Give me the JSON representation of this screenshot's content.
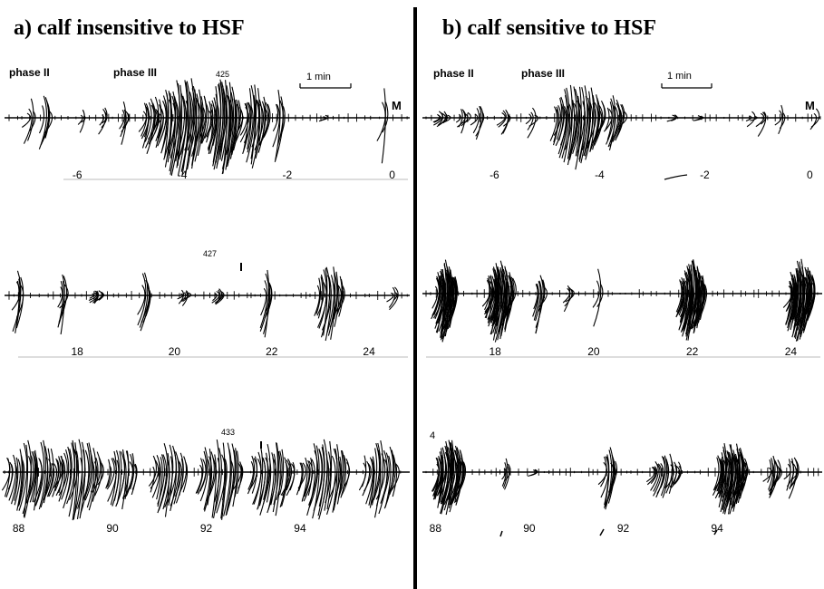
{
  "panels": [
    {
      "id": "a",
      "title": "a) calf insensitive to HSF",
      "rows": [
        {
          "phase_labels": [
            "phase II",
            "phase III"
          ],
          "record_number": "425",
          "scale_label": "1 min",
          "end_marker": "M",
          "tick_labels": [
            "-6",
            "-4",
            "-2",
            "0"
          ],
          "tick_values": [
            -6,
            -4,
            -2,
            0
          ],
          "x_range": [
            -7.3,
            0.3
          ],
          "bursts": [
            {
              "t": -6.9,
              "w": 0.05,
              "amp": 0.55,
              "dens": 4
            },
            {
              "t": -6.6,
              "w": 0.06,
              "amp": 0.7,
              "dens": 6
            },
            {
              "t": -5.9,
              "w": 0.03,
              "amp": 0.25,
              "dens": 3
            },
            {
              "t": -5.5,
              "w": 0.04,
              "amp": 0.3,
              "dens": 4
            },
            {
              "t": -5.1,
              "w": 0.05,
              "amp": 0.45,
              "dens": 5
            },
            {
              "t": -4.6,
              "w": 0.14,
              "amp": 0.6,
              "dens": 14
            },
            {
              "t": -4.0,
              "w": 0.45,
              "amp": 1.0,
              "dens": 45
            },
            {
              "t": -3.2,
              "w": 0.3,
              "amp": 0.95,
              "dens": 34
            },
            {
              "t": -2.6,
              "w": 0.22,
              "amp": 0.85,
              "dens": 22
            },
            {
              "t": -2.15,
              "w": 0.06,
              "amp": 0.75,
              "dens": 6
            },
            {
              "t": -1.3,
              "w": 0.02,
              "amp": 0.15,
              "dens": 2
            },
            {
              "t": -0.15,
              "w": 0.03,
              "amp": 0.85,
              "dens": 3
            }
          ]
        },
        {
          "record_number": "427",
          "tick_labels": [
            "18",
            "20",
            "22",
            "24"
          ],
          "tick_values": [
            18,
            20,
            22,
            24
          ],
          "x_range": [
            16.6,
            24.8
          ],
          "bursts": [
            {
              "t": 16.8,
              "w": 0.05,
              "amp": 0.9,
              "dens": 6
            },
            {
              "t": 17.7,
              "w": 0.05,
              "amp": 0.75,
              "dens": 6
            },
            {
              "t": 18.4,
              "w": 0.1,
              "amp": 0.2,
              "dens": 8
            },
            {
              "t": 19.4,
              "w": 0.06,
              "amp": 0.85,
              "dens": 7
            },
            {
              "t": 20.2,
              "w": 0.08,
              "amp": 0.2,
              "dens": 6
            },
            {
              "t": 20.9,
              "w": 0.06,
              "amp": 0.25,
              "dens": 6
            },
            {
              "t": 21.9,
              "w": 0.06,
              "amp": 0.85,
              "dens": 7
            },
            {
              "t": 23.2,
              "w": 0.25,
              "amp": 0.85,
              "dens": 20
            },
            {
              "t": 24.5,
              "w": 0.05,
              "amp": 0.3,
              "dens": 4
            }
          ]
        },
        {
          "record_number": "433",
          "tick_labels": [
            "88",
            "90",
            "92",
            "94"
          ],
          "tick_values": [
            88,
            90,
            92,
            94
          ],
          "x_range": [
            87.7,
            96.3
          ],
          "bursts": [
            {
              "t": 88.3,
              "w": 0.55,
              "amp": 0.9,
              "dens": 34
            },
            {
              "t": 89.3,
              "w": 0.45,
              "amp": 0.9,
              "dens": 28
            },
            {
              "t": 90.2,
              "w": 0.3,
              "amp": 0.75,
              "dens": 18
            },
            {
              "t": 91.2,
              "w": 0.35,
              "amp": 0.8,
              "dens": 22
            },
            {
              "t": 92.3,
              "w": 0.45,
              "amp": 0.9,
              "dens": 28
            },
            {
              "t": 93.4,
              "w": 0.45,
              "amp": 0.85,
              "dens": 28
            },
            {
              "t": 94.5,
              "w": 0.5,
              "amp": 0.9,
              "dens": 32
            },
            {
              "t": 95.7,
              "w": 0.35,
              "amp": 0.85,
              "dens": 22
            }
          ]
        }
      ]
    },
    {
      "id": "b",
      "title": "b) calf sensitive to HSF",
      "rows": [
        {
          "phase_labels": [
            "phase II",
            "phase III"
          ],
          "scale_label": "1 min",
          "end_marker": "M",
          "tick_labels": [
            "-6",
            "-4",
            "-2",
            "0"
          ],
          "tick_values": [
            -6,
            -4,
            -2,
            0
          ],
          "x_range": [
            -7.3,
            0.2
          ],
          "bursts": [
            {
              "t": -7.0,
              "w": 0.1,
              "amp": 0.2,
              "dens": 8
            },
            {
              "t": -6.6,
              "w": 0.08,
              "amp": 0.3,
              "dens": 6
            },
            {
              "t": -6.3,
              "w": 0.06,
              "amp": 0.45,
              "dens": 5
            },
            {
              "t": -5.8,
              "w": 0.06,
              "amp": 0.35,
              "dens": 5
            },
            {
              "t": -5.3,
              "w": 0.05,
              "amp": 0.4,
              "dens": 4
            },
            {
              "t": -4.4,
              "w": 0.45,
              "amp": 0.95,
              "dens": 44
            },
            {
              "t": -3.7,
              "w": 0.15,
              "amp": 0.6,
              "dens": 14
            },
            {
              "t": -2.6,
              "w": 0.02,
              "amp": 0.2,
              "dens": 2
            },
            {
              "t": -2.1,
              "w": 0.02,
              "amp": 0.15,
              "dens": 2
            },
            {
              "t": -1.1,
              "w": 0.04,
              "amp": 0.2,
              "dens": 3
            },
            {
              "t": -0.9,
              "w": 0.03,
              "amp": 0.35,
              "dens": 3
            },
            {
              "t": -0.55,
              "w": 0.03,
              "amp": 0.45,
              "dens": 3
            },
            {
              "t": 0.1,
              "w": 0.02,
              "amp": 0.6,
              "dens": 2
            }
          ]
        },
        {
          "tick_labels": [
            "18",
            "20",
            "22",
            "24"
          ],
          "tick_values": [
            18,
            20,
            22,
            24
          ],
          "x_range": [
            16.6,
            24.6
          ],
          "bursts": [
            {
              "t": 17.0,
              "w": 0.2,
              "amp": 0.95,
              "dens": 40
            },
            {
              "t": 18.1,
              "w": 0.25,
              "amp": 0.95,
              "dens": 48
            },
            {
              "t": 18.9,
              "w": 0.08,
              "amp": 0.8,
              "dens": 10
            },
            {
              "t": 19.5,
              "w": 0.04,
              "amp": 0.45,
              "dens": 4
            },
            {
              "t": 20.1,
              "w": 0.04,
              "amp": 0.9,
              "dens": 3
            },
            {
              "t": 22.0,
              "w": 0.25,
              "amp": 0.95,
              "dens": 48
            },
            {
              "t": 24.2,
              "w": 0.25,
              "amp": 0.95,
              "dens": 48
            }
          ]
        },
        {
          "tick_labels": [
            "88",
            "90",
            "92",
            "94"
          ],
          "tick_values": [
            88,
            90,
            92,
            94
          ],
          "x_range": [
            87.8,
            96.2
          ],
          "bursts": [
            {
              "t": 88.3,
              "w": 0.3,
              "amp": 0.95,
              "dens": 48
            },
            {
              "t": 89.5,
              "w": 0.05,
              "amp": 0.55,
              "dens": 5
            },
            {
              "t": 90.1,
              "w": 0.02,
              "amp": 0.2,
              "dens": 2
            },
            {
              "t": 91.7,
              "w": 0.12,
              "amp": 0.75,
              "dens": 12
            },
            {
              "t": 92.9,
              "w": 0.3,
              "amp": 0.55,
              "dens": 20
            },
            {
              "t": 94.3,
              "w": 0.3,
              "amp": 0.95,
              "dens": 48
            },
            {
              "t": 95.2,
              "w": 0.1,
              "amp": 0.55,
              "dens": 10
            },
            {
              "t": 95.6,
              "w": 0.08,
              "amp": 0.55,
              "dens": 8
            }
          ]
        }
      ]
    }
  ],
  "side_mark": "4"
}
